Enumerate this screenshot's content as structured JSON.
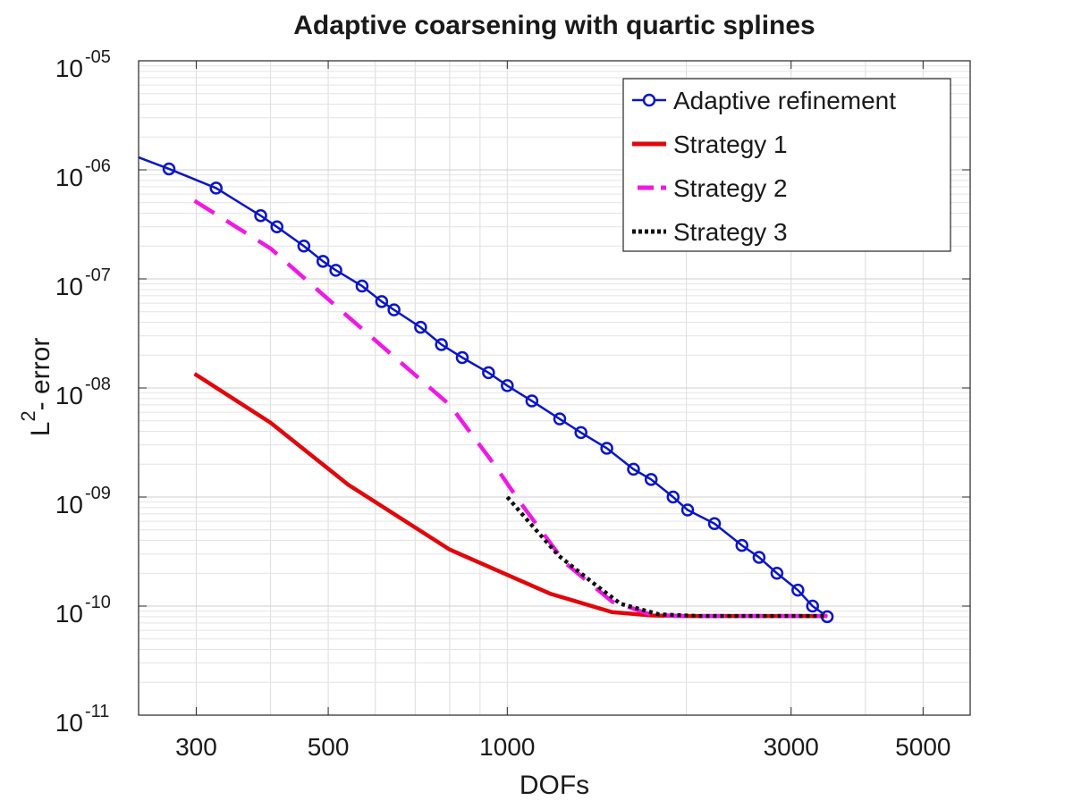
{
  "chart_data": {
    "type": "line",
    "title": "Adaptive coarsening with quartic splines",
    "xlabel": "DOFs",
    "ylabel": {
      "base": "L",
      "sup": "2",
      "rest": "- error"
    },
    "xscale": "log",
    "yscale": "log",
    "xlim": [
      240,
      6000
    ],
    "ylim": [
      1e-11,
      1e-05
    ],
    "grid": true,
    "legend_position": "top-right",
    "x_ticks": [
      {
        "value": 300,
        "label": "300"
      },
      {
        "value": 500,
        "label": "500"
      },
      {
        "value": 1000,
        "label": "1000"
      },
      {
        "value": 3000,
        "label": "3000"
      },
      {
        "value": 5000,
        "label": "5000"
      }
    ],
    "y_ticks": [
      {
        "value": 1e-05,
        "base": "10",
        "exp": "-05"
      },
      {
        "value": 1e-06,
        "base": "10",
        "exp": "-06"
      },
      {
        "value": 1e-07,
        "base": "10",
        "exp": "-07"
      },
      {
        "value": 1e-08,
        "base": "10",
        "exp": "-08"
      },
      {
        "value": 1e-09,
        "base": "10",
        "exp": "-09"
      },
      {
        "value": 1e-10,
        "base": "10",
        "exp": "-10"
      },
      {
        "value": 1e-11,
        "base": "10",
        "exp": "-11"
      }
    ],
    "series": [
      {
        "name": "Adaptive refinement",
        "color": "#0a16c8",
        "style": "solid",
        "markers": "circle",
        "x": [
          240,
          270,
          324,
          385,
          410,
          455,
          490,
          515,
          570,
          615,
          645,
          715,
          775,
          840,
          930,
          1000,
          1100,
          1225,
          1330,
          1470,
          1630,
          1745,
          1900,
          2010,
          2230,
          2480,
          2650,
          2840,
          3080,
          3260,
          3450
        ],
        "y": [
          1.3e-06,
          1.02e-06,
          6.8e-07,
          3.8e-07,
          3e-07,
          2e-07,
          1.45e-07,
          1.2e-07,
          8.6e-08,
          6.2e-08,
          5.2e-08,
          3.6e-08,
          2.5e-08,
          1.9e-08,
          1.38e-08,
          1.05e-08,
          7.6e-09,
          5.2e-09,
          3.9e-09,
          2.8e-09,
          1.8e-09,
          1.45e-09,
          1e-09,
          7.6e-10,
          5.7e-10,
          3.6e-10,
          2.8e-10,
          2e-10,
          1.4e-10,
          1e-10,
          8e-11
        ]
      },
      {
        "name": "Strategy 1",
        "color": "#e2070b",
        "style": "solid",
        "markers": "none",
        "x": [
          298,
          400,
          540,
          800,
          1180,
          1500,
          1750,
          2000,
          2500,
          3000,
          3450
        ],
        "y": [
          1.35e-08,
          4.8e-09,
          1.3e-09,
          3.3e-10,
          1.3e-10,
          8.8e-11,
          8.2e-11,
          8.1e-11,
          8.1e-11,
          8.1e-11,
          8.1e-11
        ]
      },
      {
        "name": "Strategy 2",
        "color": "#f018e6",
        "style": "dashed",
        "markers": "none",
        "x": [
          298,
          400,
          540,
          800,
          950,
          1050,
          1250,
          1500,
          1750,
          2000,
          2500,
          3000,
          3450
        ],
        "y": [
          5.2e-07,
          1.9e-07,
          4.5e-08,
          7e-09,
          2e-09,
          9e-10,
          2.5e-10,
          1.1e-10,
          8.3e-11,
          8.1e-11,
          8.1e-11,
          8.1e-11,
          8.1e-11
        ]
      },
      {
        "name": "Strategy 3",
        "color": "#111111",
        "style": "dotted",
        "markers": "none",
        "x": [
          1000,
          1100,
          1220,
          1400,
          1550,
          1800,
          2100,
          2600,
          3000,
          3450
        ],
        "y": [
          1e-09,
          5.5e-10,
          2.9e-10,
          1.6e-10,
          1.05e-10,
          8.4e-11,
          8.1e-11,
          8.1e-11,
          8.1e-11,
          8.1e-11
        ]
      }
    ]
  }
}
